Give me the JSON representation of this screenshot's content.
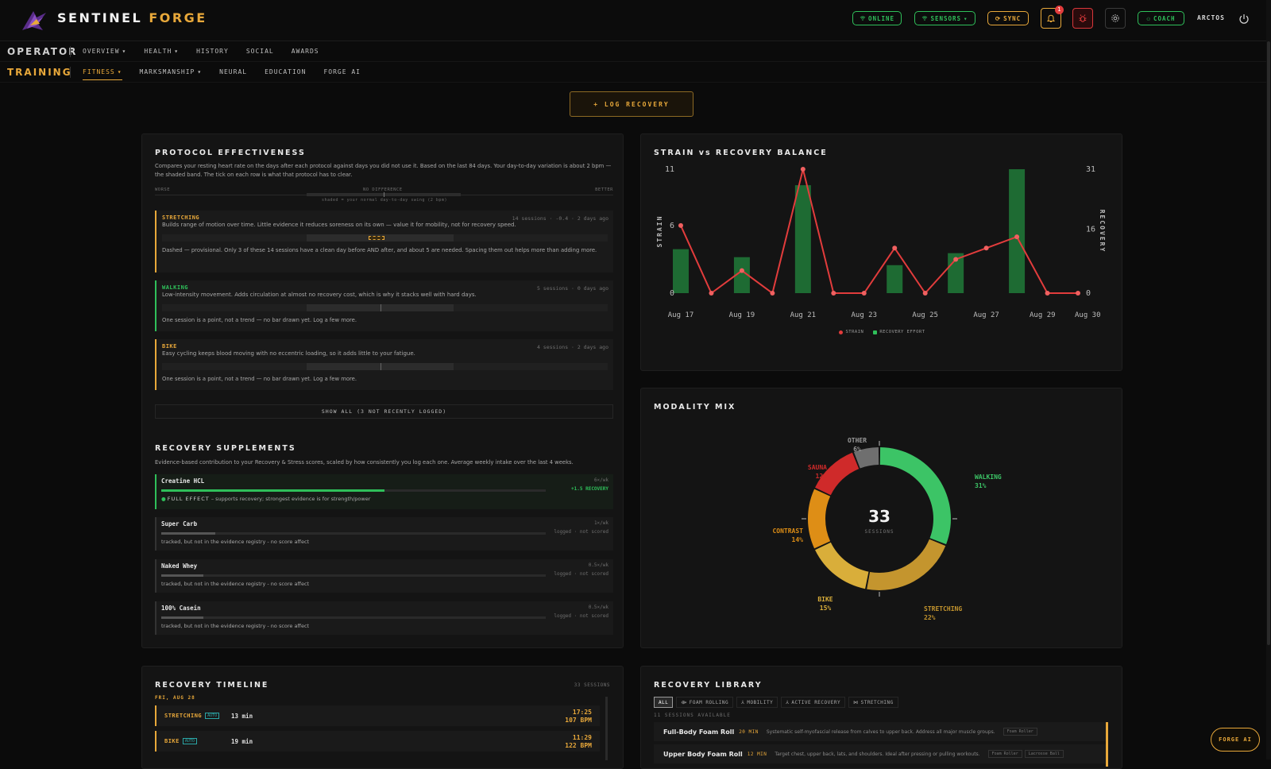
{
  "app": {
    "brand_main": "SENTINEL",
    "brand_accent": "FORGE"
  },
  "topbar": {
    "online": "ONLINE",
    "sensors": "SENSORS",
    "sync": "SYNC",
    "notif_count": "1",
    "coach": "COACH",
    "user": "ARCTOS"
  },
  "nav": {
    "operator_label": "OPERATOR",
    "operator_items": [
      "OVERVIEW",
      "HEALTH",
      "HISTORY",
      "SOCIAL",
      "AWARDS"
    ],
    "training_label": "TRAINING",
    "training_items": [
      "FITNESS",
      "MARKSMANSHIP",
      "NEURAL",
      "EDUCATION",
      "FORGE AI"
    ]
  },
  "log_recovery": "+ LOG RECOVERY",
  "protocol": {
    "title": "PROTOCOL EFFECTIVENESS",
    "desc": "Compares your resting heart rate on the days after each protocol against days you did not use it. Based on the last 84 days. Your day-to-day variation is about 2 bpm — the shaded band. The tick on each row is what that protocol has to clear.",
    "scale_worse": "WORSE",
    "scale_none": "NO DIFFERENCE",
    "scale_better": "BETTER",
    "band_note": "shaded = your normal day-to-day swing (2 bpm)",
    "items": [
      {
        "name": "STRETCHING",
        "meta": "14 sessions · -0.4 · 2 days ago",
        "desc": "Builds range of motion over time. Little evidence it reduces soreness on its own — value it for mobility, not for recovery speed.",
        "note": "Dashed — provisional. Only 3 of these 14 sessions have a clean day before AND after, and about 5 are needed. Spacing them out helps more than adding more."
      },
      {
        "name": "WALKING",
        "meta": "5 sessions · 0 days ago",
        "desc": "Low-intensity movement. Adds circulation at almost no recovery cost, which is why it stacks well with hard days.",
        "note": "One session is a point, not a trend — no bar drawn yet. Log a few more."
      },
      {
        "name": "BIKE",
        "meta": "4 sessions · 2 days ago",
        "desc": "Easy cycling keeps blood moving with no eccentric loading, so it adds little to your fatigue.",
        "note": "One session is a point, not a trend — no bar drawn yet. Log a few more."
      }
    ],
    "show_all": "SHOW ALL (3 NOT RECENTLY LOGGED)"
  },
  "supplements": {
    "title": "RECOVERY SUPPLEMENTS",
    "desc": "Evidence-based contribution to your Recovery & Stress scores, scaled by how consistently you log each one. Average weekly intake over the last 4 weeks.",
    "items": [
      {
        "name": "Creatine HCL",
        "rate": "6×/wk",
        "impact": "+1.5 RECOVERY",
        "note": "FULL EFFECT",
        "note_rest": " – supports recovery; strongest evidence is for strength/power",
        "fill": 0.58
      },
      {
        "name": "Super Carb",
        "rate": "1×/wk",
        "impact": "logged · not scored",
        "note": "tracked, but not in the evidence registry - no score affect",
        "fill": 0.14
      },
      {
        "name": "Naked Whey",
        "rate": "0.5×/wk",
        "impact": "logged · not scored",
        "note": "tracked, but not in the evidence registry - no score affect",
        "fill": 0.11
      },
      {
        "name": "100% Casein",
        "rate": "0.5×/wk",
        "impact": "logged · not scored",
        "note": "tracked, but not in the evidence registry - no score affect",
        "fill": 0.11
      }
    ]
  },
  "timeline": {
    "title": "RECOVERY TIMELINE",
    "count": "33 SESSIONS",
    "date": "FRI, AUG 28",
    "rows": [
      {
        "name": "STRETCHING",
        "tag": "AUTO",
        "dur": "13 min",
        "time": "17:25",
        "bpm": "107 BPM"
      },
      {
        "name": "BIKE",
        "tag": "AUTO",
        "dur": "19 min",
        "time": "11:29",
        "bpm": "122 BPM"
      }
    ]
  },
  "balance": {
    "title": "STRAIN vs RECOVERY BALANCE",
    "ylabel_left": "STRAIN",
    "ylabel_right": "RECOVERY",
    "legend_strain": "STRAIN",
    "legend_recovery": "RECOVERY EFFORT",
    "colors": {
      "strain": "#e23c3c",
      "recovery": "#1e6b33"
    }
  },
  "chart_data": [
    {
      "type": "bar+line",
      "title": "STRAIN vs RECOVERY BALANCE",
      "x": [
        "Aug 17",
        "Aug 18",
        "Aug 19",
        "Aug 20",
        "Aug 21",
        "Aug 22",
        "Aug 23",
        "Aug 24",
        "Aug 25",
        "Aug 26",
        "Aug 27",
        "Aug 28",
        "Aug 29",
        "Aug 30"
      ],
      "x_tick_labels": [
        "Aug 17",
        "Aug 19",
        "Aug 21",
        "Aug 23",
        "Aug 25",
        "Aug 27",
        "Aug 29",
        "Aug 30"
      ],
      "series": [
        {
          "name": "STRAIN",
          "kind": "line",
          "axis": "left",
          "values": [
            6,
            0,
            2,
            0,
            11,
            0,
            0,
            4,
            0,
            3,
            4,
            5,
            0,
            0
          ]
        },
        {
          "name": "RECOVERY EFFORT",
          "kind": "bar",
          "axis": "right",
          "values": [
            11,
            0,
            9,
            0,
            27,
            0,
            0,
            7,
            0,
            10,
            0,
            31,
            0,
            0
          ]
        }
      ],
      "ylim_left": [
        0,
        11
      ],
      "yticks_left": [
        0,
        6,
        11
      ],
      "ylim_right": [
        0,
        31
      ],
      "yticks_right": [
        0,
        16,
        31
      ],
      "xlabel": "",
      "ylabel": "STRAIN",
      "ylabel_right": "RECOVERY",
      "legend": "bottom-center",
      "grid": false
    },
    {
      "type": "pie",
      "title": "MODALITY MIX",
      "center_value": "33",
      "center_label": "SESSIONS",
      "slices": [
        {
          "label": "WALKING",
          "pct": "31%",
          "value": 31,
          "color": "#3cc466"
        },
        {
          "label": "STRETCHING",
          "pct": "22%",
          "value": 22,
          "color": "#c4952e"
        },
        {
          "label": "BIKE",
          "pct": "15%",
          "value": 15,
          "color": "#d9ae3a"
        },
        {
          "label": "CONTRAST",
          "pct": "14%",
          "value": 14,
          "color": "#de8e16"
        },
        {
          "label": "SAUNA",
          "pct": "12%",
          "value": 12,
          "color": "#cf2a2a"
        },
        {
          "label": "OTHER",
          "pct": "6%",
          "value": 6,
          "color": "#6f6f6f"
        }
      ]
    }
  ],
  "modality": {
    "title": "MODALITY MIX"
  },
  "library": {
    "title": "RECOVERY LIBRARY",
    "chips": [
      "ALL",
      "FOAM ROLLING",
      "MOBILITY",
      "ACTIVE RECOVERY",
      "STRETCHING"
    ],
    "available": "11 SESSIONS AVAILABLE",
    "rows": [
      {
        "name": "Full-Body Foam Roll",
        "min": "20 MIN",
        "desc": "Systematic self-myofascial release from calves to upper back. Address all major muscle groups.",
        "tag": "Foam Roller"
      },
      {
        "name": "Upper Body Foam Roll",
        "min": "12 MIN",
        "desc": "Target chest, upper back, lats, and shoulders. Ideal after pressing or pulling workouts.",
        "tag": "Foam Roller",
        "tag2": "Lacrosse Ball"
      }
    ]
  },
  "forge_ai": "FORGE AI"
}
